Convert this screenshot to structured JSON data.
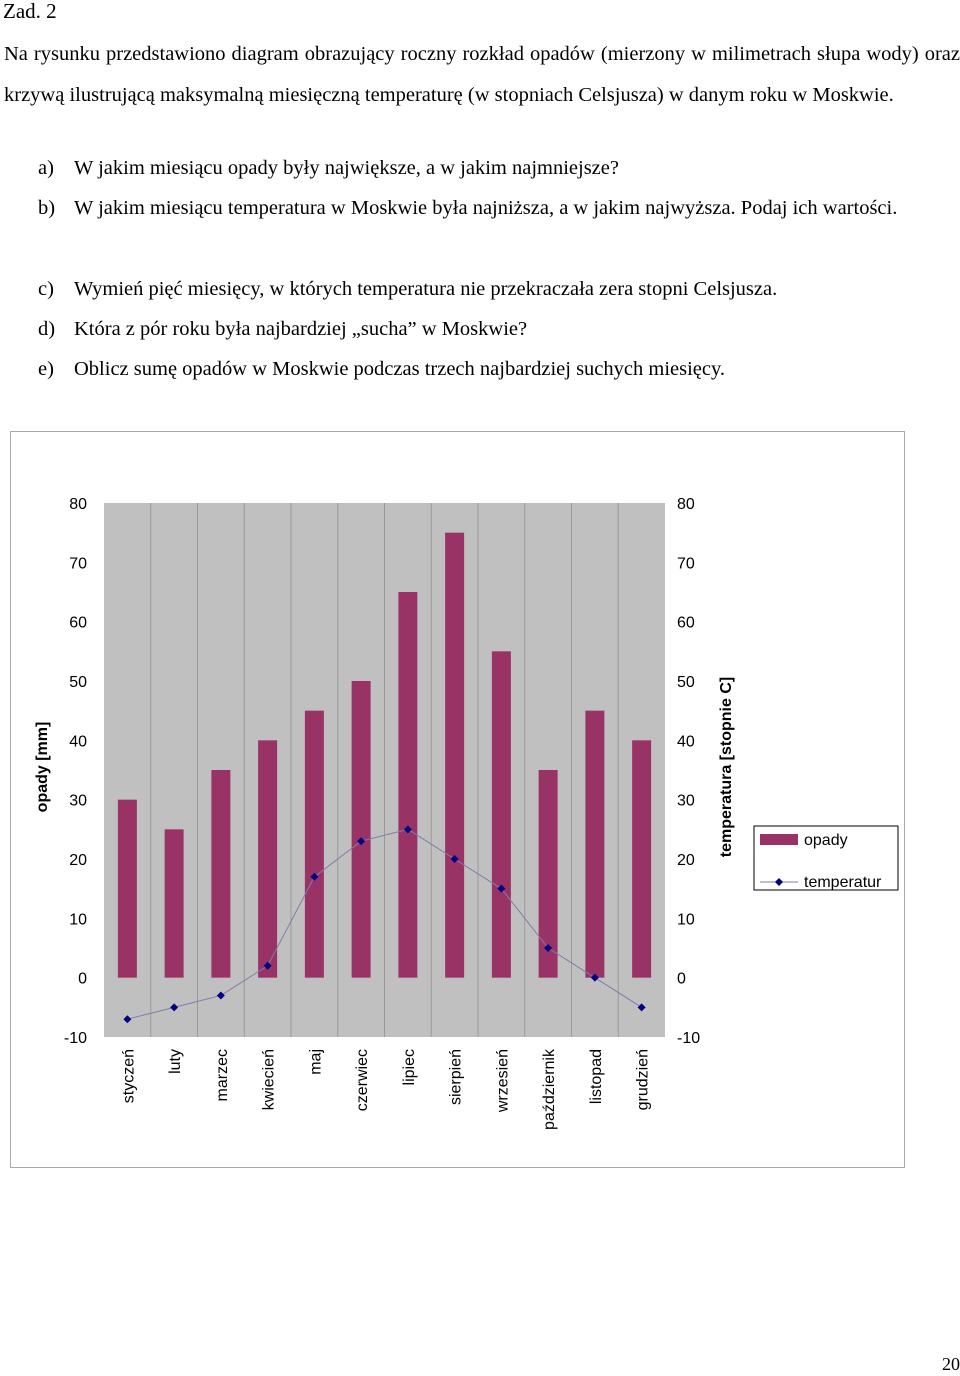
{
  "heading": "Zad. 2",
  "intro": "Na rysunku przedstawiono diagram obrazujący roczny rozkład opadów (mierzony w milimetrach słupa wody) oraz krzywą ilustrującą maksymalną miesięczną temperaturę (w stopniach Celsjusza) w danym roku w Moskwie.",
  "questions": [
    {
      "label": "a)",
      "text": "W jakim miesiącu opady były największe, a w jakim najmniejsze?"
    },
    {
      "label": "b)",
      "text": "W jakim miesiącu temperatura w Moskwie była najniższa, a w jakim najwyższa. Podaj ich wartości."
    },
    {
      "label": "c)",
      "text": "Wymień pięć miesięcy, w których temperatura nie przekraczała zera stopni Celsjusza."
    },
    {
      "label": "d)",
      "text": "Która z pór roku była najbardziej „sucha” w Moskwie?"
    },
    {
      "label": "e)",
      "text": "Oblicz sumę opadów w Moskwie podczas trzech najbardziej suchych miesięcy."
    }
  ],
  "chart_data": {
    "type": "bar",
    "categories": [
      "styczeń",
      "luty",
      "marzec",
      "kwiecień",
      "maj",
      "czerwiec",
      "lipiec",
      "sierpień",
      "wrzesień",
      "październik",
      "listopad",
      "grudzień"
    ],
    "series": [
      {
        "name": "opady",
        "kind": "bar",
        "axis": "left",
        "color": "#993366",
        "values": [
          30,
          25,
          35,
          40,
          45,
          50,
          65,
          75,
          55,
          35,
          45,
          40
        ]
      },
      {
        "name": "temperatur",
        "kind": "line",
        "axis": "right",
        "color": "#000080",
        "values": [
          -7,
          -5,
          -3,
          2,
          17,
          23,
          25,
          20,
          15,
          5,
          0,
          -5
        ]
      }
    ],
    "ylabel": "opady [mm]",
    "y2label": "temperatura [stopnie C]",
    "ylim": [
      -10,
      80
    ],
    "y2lim": [
      -10,
      80
    ],
    "yticks": [
      "80",
      "70",
      "60",
      "50",
      "40",
      "30",
      "20",
      "10",
      "0",
      "-10"
    ],
    "grid": true,
    "plot_background": "#c0c0c0",
    "legend_position": "right"
  },
  "page_number": "20"
}
